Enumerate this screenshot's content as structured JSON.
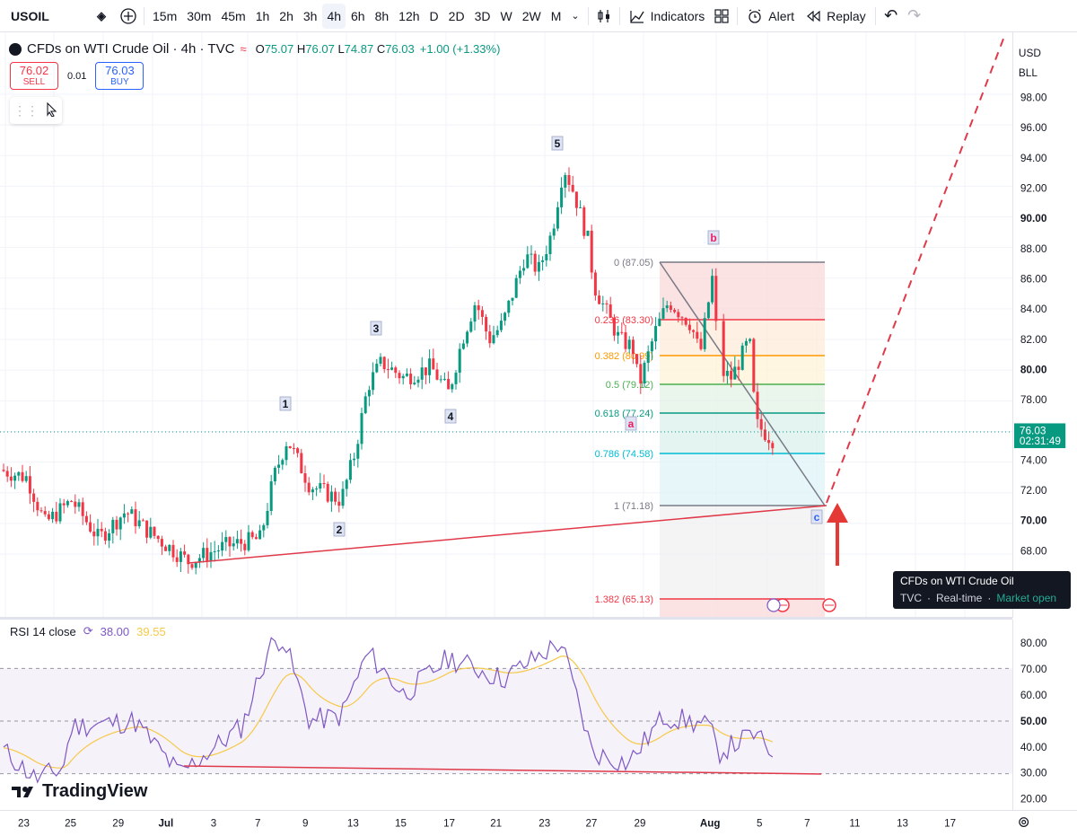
{
  "toolbar": {
    "symbol": "USOIL",
    "timeframes": [
      "15m",
      "30m",
      "45m",
      "1h",
      "2h",
      "3h",
      "4h",
      "6h",
      "8h",
      "12h",
      "D",
      "2D",
      "3D",
      "W",
      "2W",
      "M"
    ],
    "active_timeframe": "4h",
    "indicators_label": "Indicators",
    "alert_label": "Alert",
    "replay_label": "Replay"
  },
  "legend": {
    "title": "CFDs on WTI Crude Oil · 4h · TVC",
    "o_label": "O",
    "o": "75.07",
    "h_label": "H",
    "h": "76.07",
    "l_label": "L",
    "l": "74.87",
    "c_label": "C",
    "c": "76.03",
    "change": "+1.00 (+1.33%)"
  },
  "trade": {
    "sell_price": "76.02",
    "sell_label": "SELL",
    "spread": "0.01",
    "buy_price": "76.03",
    "buy_label": "BUY"
  },
  "price_scale": {
    "currency": "USD",
    "unit": "BLL",
    "ticks": [
      "98.00",
      "96.00",
      "94.00",
      "92.00",
      "90.00",
      "88.00",
      "86.00",
      "84.00",
      "82.00",
      "80.00",
      "78.00",
      "76.00",
      "74.00",
      "72.00",
      "70.00",
      "68.00"
    ],
    "current_price": "76.03",
    "countdown": "02:31:49"
  },
  "rsi": {
    "label": "RSI 14 close",
    "value": "38.00",
    "ma_value": "39.55",
    "ticks": [
      "80.00",
      "70.00",
      "60.00",
      "50.00",
      "40.00",
      "30.00",
      "20.00"
    ]
  },
  "time_axis": {
    "labels": [
      "23",
      "25",
      "29",
      "Jul",
      "3",
      "7",
      "9",
      "13",
      "15",
      "17",
      "21",
      "23",
      "27",
      "29",
      "Aug",
      "5",
      "7",
      "11",
      "13",
      "17"
    ]
  },
  "fib_levels": [
    {
      "label": "0 (87.05)",
      "color": "#787b86"
    },
    {
      "label": "0.236 (83.30)",
      "color": "#f23645"
    },
    {
      "label": "0.382 (80.99)",
      "color": "#ff9800"
    },
    {
      "label": "0.5 (79.12)",
      "color": "#4caf50"
    },
    {
      "label": "0.618 (77.24)",
      "color": "#089981"
    },
    {
      "label": "0.786 (74.58)",
      "color": "#00bcd4"
    },
    {
      "label": "1 (71.18)",
      "color": "#787b86"
    },
    {
      "label": "1.382 (65.13)",
      "color": "#f23645"
    }
  ],
  "waves": [
    "1",
    "2",
    "3",
    "4",
    "5",
    "a",
    "b",
    "c"
  ],
  "tooltip": {
    "title": "CFDs on WTI Crude Oil",
    "source": "TVC",
    "realtime": "Real-time",
    "status": "Market open"
  },
  "logo": "TradingView",
  "colors": {
    "up": "#089981",
    "down": "#f23645",
    "rsi": "#7e57c2",
    "rsi_ma": "#f7c948",
    "trendline": "#e03a4a"
  }
}
